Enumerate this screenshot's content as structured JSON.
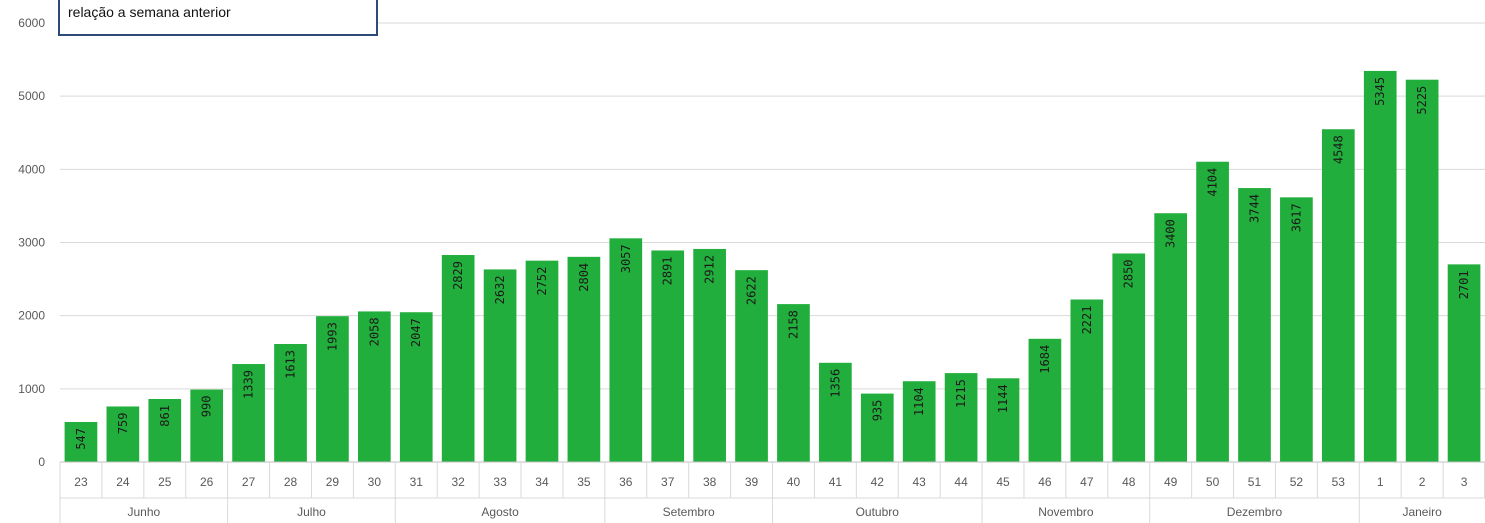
{
  "note": {
    "text": "relação a semana anterior"
  },
  "chart_data": {
    "type": "bar",
    "ylim": [
      0,
      6000
    ],
    "yticks": [
      0,
      1000,
      2000,
      3000,
      4000,
      5000,
      6000
    ],
    "grid": true,
    "bar_color": "#22ae3c",
    "categories": [
      "23",
      "24",
      "25",
      "26",
      "27",
      "28",
      "29",
      "30",
      "31",
      "32",
      "33",
      "34",
      "35",
      "36",
      "37",
      "38",
      "39",
      "40",
      "41",
      "42",
      "43",
      "44",
      "45",
      "46",
      "47",
      "48",
      "49",
      "50",
      "51",
      "52",
      "53",
      "1",
      "2",
      "3"
    ],
    "values": [
      547,
      759,
      861,
      990,
      1339,
      1613,
      1993,
      2058,
      2047,
      2829,
      2632,
      2752,
      2804,
      3057,
      2891,
      2912,
      2622,
      2158,
      1356,
      935,
      1104,
      1215,
      1144,
      1684,
      2221,
      2850,
      3400,
      4104,
      3744,
      3617,
      4548,
      5345,
      5225,
      2701
    ],
    "groups": [
      {
        "label": "Junho",
        "count": 4
      },
      {
        "label": "Julho",
        "count": 4
      },
      {
        "label": "Agosto",
        "count": 5
      },
      {
        "label": "Setembro",
        "count": 4
      },
      {
        "label": "Outubro",
        "count": 5
      },
      {
        "label": "Novembro",
        "count": 4
      },
      {
        "label": "Dezembro",
        "count": 5
      },
      {
        "label": "Janeiro",
        "count": 3
      }
    ]
  }
}
